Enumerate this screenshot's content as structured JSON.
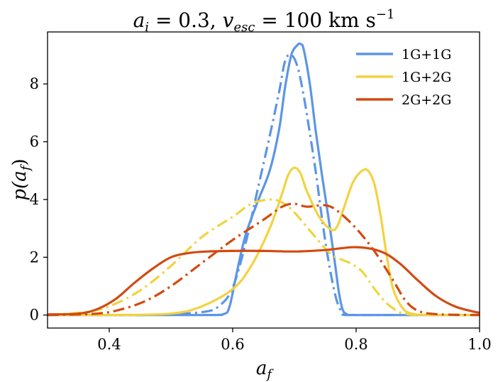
{
  "chart_data": {
    "type": "line",
    "title": {
      "a_symbol": "a",
      "a_subscript": "i",
      "a_value": " = 0.3, ",
      "v_symbol": "v",
      "v_subscript": "esc",
      "v_value": " = 100 km s",
      "v_exponent": "−1"
    },
    "xlabel": {
      "symbol": "a",
      "subscript": "f"
    },
    "ylabel": {
      "prefix": "p(",
      "symbol": "a",
      "subscript": "f",
      "suffix": ")"
    },
    "xlim": [
      0.3,
      1.0
    ],
    "ylim": [
      -0.45,
      9.8
    ],
    "xticks": [
      0.4,
      0.6,
      0.8,
      1.0
    ],
    "xtick_labels": [
      "0.4",
      "0.6",
      "0.8",
      "1.0"
    ],
    "yticks": [
      0,
      2,
      4,
      6,
      8
    ],
    "ytick_labels": [
      "0",
      "2",
      "4",
      "6",
      "8"
    ],
    "grid": false,
    "legend_position": "top-right",
    "legend": [
      {
        "label": "1G+1G",
        "color": "#5b95e6"
      },
      {
        "label": "1G+2G",
        "color": "#f2d33f"
      },
      {
        "label": "2G+2G",
        "color": "#d34a10"
      }
    ],
    "series": [
      {
        "name": "1G+1G",
        "style": "solid",
        "color": "#5b95e6",
        "x": [
          0.3,
          0.55,
          0.585,
          0.595,
          0.605,
          0.62,
          0.64,
          0.66,
          0.675,
          0.685,
          0.695,
          0.705,
          0.71,
          0.715,
          0.725,
          0.735,
          0.745,
          0.755,
          0.765,
          0.772,
          0.778,
          0.785,
          0.8,
          1.0
        ],
        "y": [
          0.0,
          0.0,
          0.03,
          0.3,
          1.3,
          2.7,
          3.9,
          5.0,
          6.4,
          7.9,
          9.0,
          9.35,
          9.38,
          9.2,
          8.0,
          6.3,
          4.8,
          3.4,
          1.9,
          0.8,
          0.2,
          0.03,
          0.0,
          0.0
        ]
      },
      {
        "name": "",
        "style": "dashdot",
        "color": "#5b95e6",
        "x": [
          0.3,
          0.45,
          0.55,
          0.58,
          0.6,
          0.62,
          0.64,
          0.66,
          0.675,
          0.685,
          0.695,
          0.705,
          0.715,
          0.725,
          0.735,
          0.745,
          0.755,
          0.765,
          0.772,
          0.78,
          0.8,
          1.0
        ],
        "y": [
          0.0,
          0.0,
          0.1,
          0.35,
          0.95,
          2.4,
          4.3,
          6.2,
          7.7,
          8.8,
          9.0,
          8.6,
          7.6,
          6.3,
          4.9,
          3.3,
          1.9,
          0.8,
          0.3,
          0.05,
          0.0,
          0.0
        ]
      },
      {
        "name": "1G+2G",
        "style": "solid",
        "color": "#f2d33f",
        "x": [
          0.3,
          0.4,
          0.5,
          0.55,
          0.6,
          0.63,
          0.66,
          0.68,
          0.69,
          0.7,
          0.71,
          0.72,
          0.74,
          0.76,
          0.77,
          0.78,
          0.795,
          0.81,
          0.82,
          0.83,
          0.84,
          0.85,
          0.86,
          0.875,
          0.89,
          0.92,
          1.0
        ],
        "y": [
          0.0,
          0.0,
          0.05,
          0.3,
          0.9,
          1.7,
          3.0,
          4.2,
          4.85,
          5.1,
          4.9,
          4.3,
          3.4,
          2.95,
          3.1,
          3.7,
          4.6,
          5.0,
          4.98,
          4.5,
          3.4,
          2.0,
          0.9,
          0.25,
          0.05,
          0.0,
          0.0
        ]
      },
      {
        "name": "",
        "style": "dashdot",
        "color": "#f2d33f",
        "x": [
          0.3,
          0.36,
          0.4,
          0.45,
          0.5,
          0.55,
          0.6,
          0.63,
          0.66,
          0.68,
          0.7,
          0.73,
          0.76,
          0.79,
          0.81,
          0.83,
          0.85,
          0.87,
          0.88,
          0.9,
          1.0
        ],
        "y": [
          0.0,
          0.1,
          0.3,
          0.85,
          1.7,
          2.7,
          3.4,
          3.85,
          4.0,
          3.9,
          3.55,
          2.8,
          2.1,
          1.8,
          1.5,
          0.9,
          0.4,
          0.1,
          0.05,
          0.0,
          0.0
        ]
      },
      {
        "name": "2G+2G",
        "style": "solid",
        "color": "#d34a10",
        "x": [
          0.3,
          0.35,
          0.38,
          0.41,
          0.44,
          0.47,
          0.5,
          0.53,
          0.56,
          0.6,
          0.65,
          0.7,
          0.75,
          0.8,
          0.84,
          0.87,
          0.9,
          0.93,
          0.96,
          0.99,
          1.0
        ],
        "y": [
          0.02,
          0.05,
          0.2,
          0.55,
          1.1,
          1.6,
          2.0,
          2.15,
          2.2,
          2.22,
          2.22,
          2.2,
          2.25,
          2.35,
          2.2,
          1.8,
          1.2,
          0.65,
          0.3,
          0.12,
          0.08
        ]
      },
      {
        "name": "",
        "style": "dashdot",
        "color": "#d34a10",
        "x": [
          0.3,
          0.38,
          0.42,
          0.46,
          0.5,
          0.55,
          0.6,
          0.65,
          0.68,
          0.7,
          0.72,
          0.75,
          0.77,
          0.8,
          0.83,
          0.86,
          0.88,
          0.9,
          0.93,
          1.0
        ],
        "y": [
          0.0,
          0.05,
          0.2,
          0.5,
          1.0,
          1.8,
          2.6,
          3.3,
          3.75,
          3.85,
          3.75,
          3.8,
          3.6,
          3.0,
          2.2,
          1.2,
          0.5,
          0.15,
          0.03,
          0.0
        ]
      }
    ]
  }
}
